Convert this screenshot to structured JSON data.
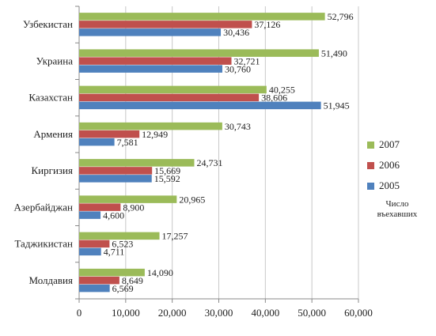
{
  "chart_data": {
    "type": "bar",
    "orientation": "horizontal",
    "categories": [
      "Узбекистан",
      "Украина",
      "Казахстан",
      "Армения",
      "Киргизия",
      "Азербайджан",
      "Таджикистан",
      "Молдавия"
    ],
    "series": [
      {
        "name": "2007",
        "color": "#9bbb59",
        "values": [
          52796,
          51490,
          40255,
          30743,
          24731,
          20965,
          17257,
          14090
        ],
        "labels": [
          "52,796",
          "51,490",
          "40,255",
          "30,743",
          "24,731",
          "20,965",
          "17,257",
          "14,090"
        ]
      },
      {
        "name": "2006",
        "color": "#c0504d",
        "values": [
          37126,
          32721,
          38606,
          12949,
          15669,
          8900,
          6523,
          8649
        ],
        "labels": [
          "37,126",
          "32,721",
          "38,606",
          "12,949",
          "15,669",
          "8,900",
          "6,523",
          "8,649"
        ]
      },
      {
        "name": "2005",
        "color": "#4f81bd",
        "values": [
          30436,
          30760,
          51945,
          7581,
          15592,
          4600,
          4711,
          6569
        ],
        "labels": [
          "30,436",
          "30,760",
          "51,945",
          "7,581",
          "15,592",
          "4,600",
          "4,711",
          "6,569"
        ]
      }
    ],
    "xlim": [
      0,
      60000
    ],
    "xticks": [
      0,
      10000,
      20000,
      30000,
      40000,
      50000,
      60000
    ],
    "xtick_labels": [
      "0",
      "10,000",
      "20,000",
      "30,000",
      "40,000",
      "50,000",
      "60,000"
    ],
    "legend_note": "Число въехавших",
    "legend_position": "right",
    "grid": true
  }
}
